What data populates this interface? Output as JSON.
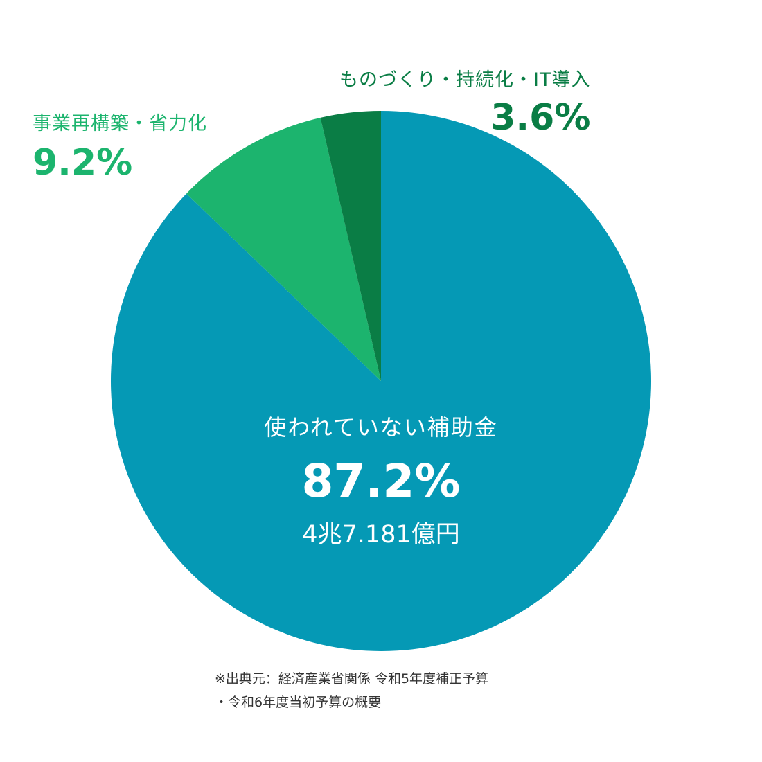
{
  "chart_data": {
    "type": "pie",
    "slices": [
      {
        "label": "使われていない補助金",
        "value": 87.2,
        "value_label": "87.2%",
        "amount": "4兆7.181億円",
        "color": "#0599b5"
      },
      {
        "label": "事業再構築・省力化",
        "value": 9.2,
        "value_label": "9.2%",
        "color": "#1cb46e"
      },
      {
        "label": "ものづくり・持続化・IT導入",
        "value": 3.6,
        "value_label": "3.6%",
        "color": "#0a7d45"
      }
    ],
    "start_angle": "12 o'clock",
    "direction": "clockwise",
    "legend": "none (direct labels)"
  },
  "labels": {
    "monozukuri": {
      "name": "ものづくり・持続化・IT導入",
      "pct": "3.6%"
    },
    "saikouchiku": {
      "name": "事業再構築・省力化",
      "pct": "9.2%"
    },
    "unused": {
      "name": "使われていない補助金",
      "pct": "87.2%",
      "amount": "4兆7.181億円"
    }
  },
  "source_note": {
    "line1": "※出典元：経済産業省関係 令和5年度補正予算",
    "line2": "・令和6年度当初予算の概要"
  }
}
